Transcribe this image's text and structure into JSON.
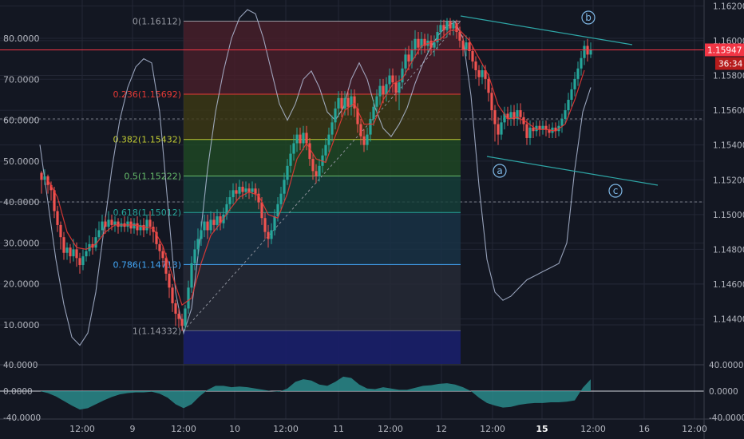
{
  "colors": {
    "background": "#131722",
    "grid": "#232735",
    "axis_text": "#b2b5be",
    "bull": "#26a69a",
    "bear": "#ef5350",
    "oscillator_line": "#b8c4e0",
    "oscillator_fill": "#2a8a8a",
    "price_line": "#f23645",
    "trendline": "#2ea6a6",
    "wave_label": "#7fb8e6"
  },
  "chart_data": {
    "type": "candlestick",
    "price_axis": {
      "range": [
        1.1432,
        1.1622
      ],
      "ticks": [
        "1.16200",
        "1.16000",
        "1.15800",
        "1.15600",
        "1.15400",
        "1.15200",
        "1.15000",
        "1.14800",
        "1.14600",
        "1.14400"
      ]
    },
    "oscillator_axis": {
      "range": [
        4.3,
        88.0
      ],
      "ticks": [
        "80.0000",
        "70.0000",
        "60.0000",
        "50.0000",
        "40.0000",
        "30.0000",
        "20.0000",
        "10.0000"
      ]
    },
    "time_axis": {
      "labels": [
        "12:00",
        "9",
        "12:00",
        "10",
        "12:00",
        "11",
        "12:00",
        "12",
        "12:00",
        "15",
        "12:00",
        "16",
        "12:00"
      ],
      "bold_labels": [
        "15"
      ]
    },
    "last_price": "1.15947",
    "countdown": "36:34",
    "fibonacci_levels": [
      {
        "ratio": 0,
        "label": "0(1.16112)",
        "price": 1.16112,
        "color": "#9598a1",
        "fill": "#4a1f2a"
      },
      {
        "ratio": 0.236,
        "label": "0.236(1.15692)",
        "price": 1.15692,
        "color": "#e53935",
        "fill": "#3d3a14"
      },
      {
        "ratio": 0.382,
        "label": "0.382(1.15432)",
        "price": 1.15432,
        "color": "#c0ca33",
        "fill": "#1f4a24"
      },
      {
        "ratio": 0.5,
        "label": "0.5(1.15222)",
        "price": 1.15222,
        "color": "#66bb6a",
        "fill": "#15403a"
      },
      {
        "ratio": 0.618,
        "label": "0.618(1.15012)",
        "price": 1.15012,
        "color": "#26a69a",
        "fill": "#193347"
      },
      {
        "ratio": 0.786,
        "label": "0.786(1.14713)",
        "price": 1.14713,
        "color": "#42a5f5",
        "fill": "#272b37"
      },
      {
        "ratio": 1,
        "label": "1(1.14332)",
        "price": 1.14332,
        "color": "#9598a1",
        "fill": "#1a1f6a"
      }
    ],
    "wave_labels": [
      "a",
      "b",
      "c"
    ],
    "lower_panel": {
      "range": [
        -40,
        40
      ],
      "ticks": [
        "40.0000",
        "0.0000",
        "-40.0000"
      ]
    }
  }
}
